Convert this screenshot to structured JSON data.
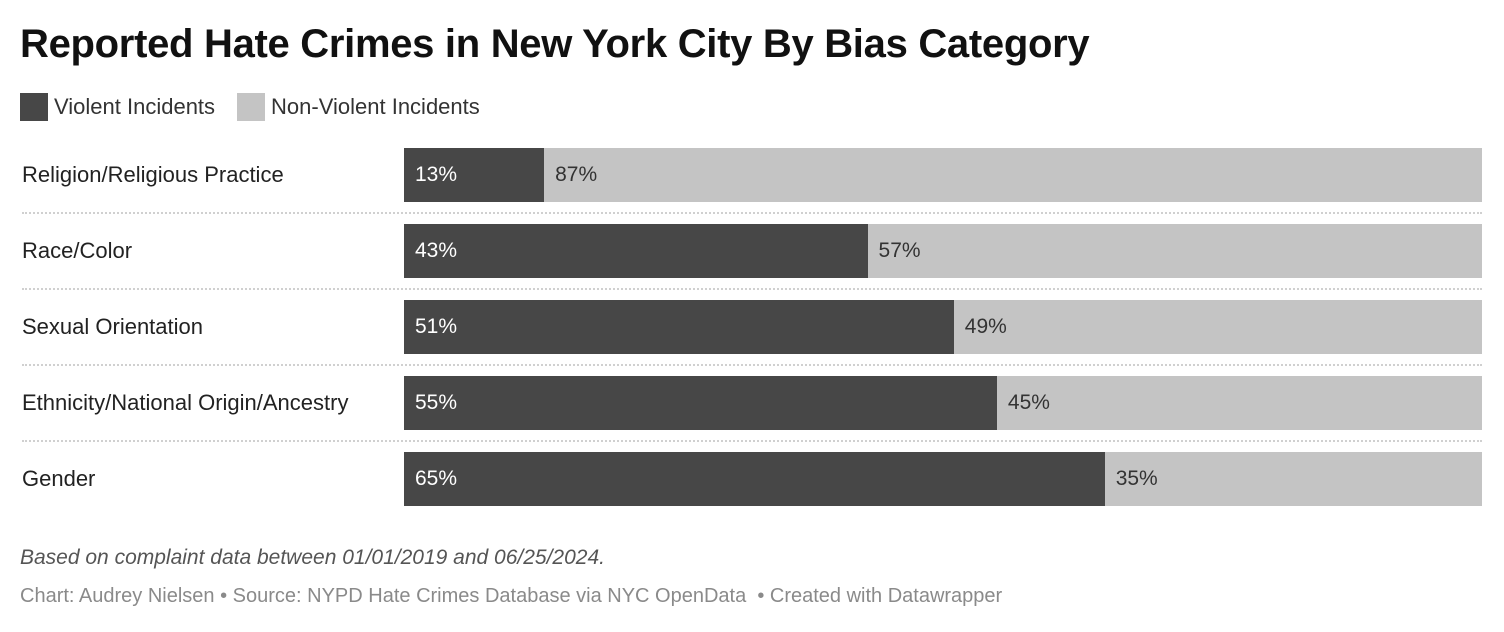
{
  "chart_data": {
    "type": "bar",
    "orientation": "horizontal",
    "stacked": true,
    "title": "Reported Hate Crimes in New York City By Bias Category",
    "categories": [
      "Religion/Religious Practice",
      "Race/Color",
      "Sexual Orientation",
      "Ethnicity/National Origin/Ancestry",
      "Gender"
    ],
    "series": [
      {
        "name": "Violent Incidents",
        "values": [
          13,
          43,
          51,
          55,
          65
        ],
        "color": "#474747",
        "label_color": "#ffffff"
      },
      {
        "name": "Non-Violent Incidents",
        "values": [
          87,
          57,
          49,
          45,
          35
        ],
        "color": "#c4c4c4",
        "label_color": "#333333"
      }
    ],
    "value_suffix": "%",
    "xlim": [
      0,
      100
    ],
    "legend_position": "top-left",
    "grid": false,
    "note": "Based on complaint data between 01/01/2019 and 06/25/2024.",
    "credits": "Chart: Audrey Nielsen • Source: NYPD Hate Crimes Database via NYC OpenData  • Created with Datawrapper"
  }
}
